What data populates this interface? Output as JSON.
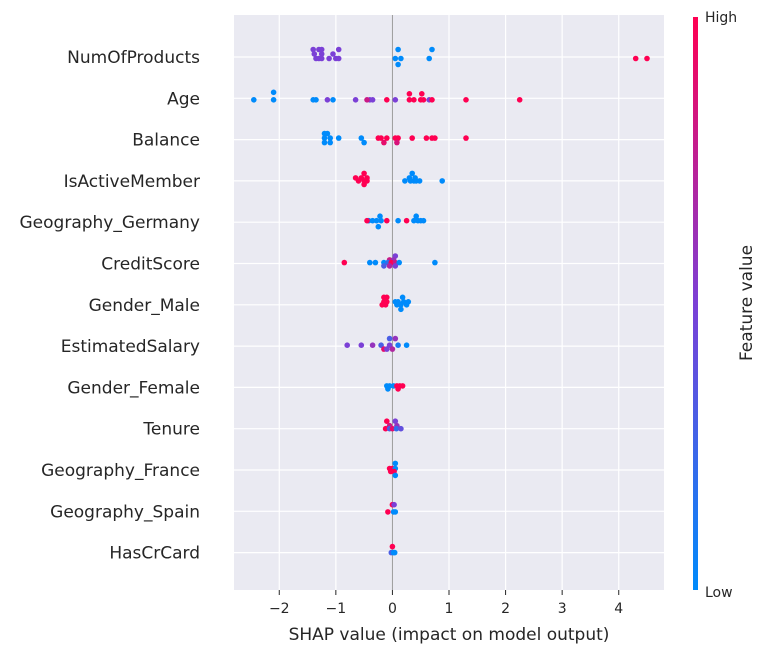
{
  "chart_data": {
    "type": "scatter",
    "subtype": "shap-beeswarm",
    "xlabel": "SHAP value (impact on model output)",
    "xlim": [
      -2.8,
      4.8
    ],
    "xticks": [
      -2,
      -1,
      0,
      1,
      2,
      3,
      4
    ],
    "xtick_labels": [
      "−2",
      "−1",
      "0",
      "1",
      "2",
      "3",
      "4"
    ],
    "grid": true,
    "colorbar": {
      "title": "Feature value",
      "high_label": "High",
      "low_label": "Low",
      "low_color": "#008bfb",
      "high_color": "#ff0052"
    },
    "features": [
      {
        "name": "NumOfProducts",
        "points": [
          {
            "x": -1.4,
            "dy": -0.25,
            "v": 0.5
          },
          {
            "x": -1.3,
            "dy": -0.25,
            "v": 0.5
          },
          {
            "x": -1.25,
            "dy": -0.25,
            "v": 0.5
          },
          {
            "x": -0.95,
            "dy": -0.25,
            "v": 0.5
          },
          {
            "x": -1.38,
            "dy": -0.1,
            "v": 0.5
          },
          {
            "x": -1.25,
            "dy": -0.1,
            "v": 0.5
          },
          {
            "x": -1.05,
            "dy": -0.1,
            "v": 0.5
          },
          {
            "x": -1.35,
            "dy": 0.05,
            "v": 0.5
          },
          {
            "x": -1.3,
            "dy": 0.05,
            "v": 0.5
          },
          {
            "x": -1.25,
            "dy": 0.05,
            "v": 0.5
          },
          {
            "x": -1.12,
            "dy": 0.05,
            "v": 0.5
          },
          {
            "x": -1.0,
            "dy": 0.05,
            "v": 0.5
          },
          {
            "x": -0.95,
            "dy": 0.05,
            "v": 0.5
          },
          {
            "x": 0.1,
            "dy": -0.25,
            "v": 0.0
          },
          {
            "x": 0.7,
            "dy": -0.25,
            "v": 0.0
          },
          {
            "x": 0.05,
            "dy": 0.05,
            "v": 0.0
          },
          {
            "x": 0.15,
            "dy": 0.05,
            "v": 0.0
          },
          {
            "x": 0.65,
            "dy": 0.05,
            "v": 0.0
          },
          {
            "x": 0.1,
            "dy": 0.25,
            "v": 0.0
          },
          {
            "x": 4.3,
            "dy": 0.05,
            "v": 1.0
          },
          {
            "x": 4.5,
            "dy": 0.05,
            "v": 1.0
          }
        ]
      },
      {
        "name": "Age",
        "points": [
          {
            "x": -2.1,
            "dy": -0.2,
            "v": 0.0
          },
          {
            "x": -2.45,
            "dy": 0.05,
            "v": 0.0
          },
          {
            "x": -2.1,
            "dy": 0.05,
            "v": 0.0
          },
          {
            "x": -1.4,
            "dy": 0.05,
            "v": 0.0
          },
          {
            "x": -1.35,
            "dy": 0.05,
            "v": 0.0
          },
          {
            "x": -1.05,
            "dy": 0.05,
            "v": 0.0
          },
          {
            "x": -1.15,
            "dy": 0.05,
            "v": 0.5
          },
          {
            "x": -0.65,
            "dy": 0.05,
            "v": 0.5
          },
          {
            "x": -0.4,
            "dy": 0.05,
            "v": 0.5
          },
          {
            "x": -0.35,
            "dy": 0.05,
            "v": 0.5
          },
          {
            "x": 0.05,
            "dy": 0.05,
            "v": 0.5
          },
          {
            "x": 0.65,
            "dy": 0.05,
            "v": 0.5
          },
          {
            "x": -0.45,
            "dy": 0.05,
            "v": 0.8
          },
          {
            "x": -0.1,
            "dy": 0.05,
            "v": 1.0
          },
          {
            "x": 0.3,
            "dy": 0.05,
            "v": 1.0
          },
          {
            "x": 0.38,
            "dy": 0.05,
            "v": 1.0
          },
          {
            "x": 0.5,
            "dy": 0.05,
            "v": 1.0
          },
          {
            "x": 0.55,
            "dy": 0.05,
            "v": 1.0
          },
          {
            "x": 0.7,
            "dy": 0.05,
            "v": 1.0
          },
          {
            "x": 1.3,
            "dy": 0.05,
            "v": 1.0
          },
          {
            "x": 2.25,
            "dy": 0.05,
            "v": 1.0
          },
          {
            "x": 0.3,
            "dy": -0.15,
            "v": 1.0
          },
          {
            "x": 0.52,
            "dy": -0.15,
            "v": 1.0
          }
        ]
      },
      {
        "name": "Balance",
        "points": [
          {
            "x": -1.2,
            "dy": -0.2,
            "v": 0.0
          },
          {
            "x": -1.15,
            "dy": -0.2,
            "v": 0.0
          },
          {
            "x": -1.2,
            "dy": -0.05,
            "v": 0.0
          },
          {
            "x": -1.1,
            "dy": -0.05,
            "v": 0.0
          },
          {
            "x": -0.95,
            "dy": -0.05,
            "v": 0.0
          },
          {
            "x": -0.55,
            "dy": -0.05,
            "v": 0.0
          },
          {
            "x": -1.2,
            "dy": 0.1,
            "v": 0.0
          },
          {
            "x": -1.1,
            "dy": 0.1,
            "v": 0.0
          },
          {
            "x": -0.5,
            "dy": 0.1,
            "v": 0.0
          },
          {
            "x": -0.25,
            "dy": -0.05,
            "v": 1.0
          },
          {
            "x": -0.2,
            "dy": -0.05,
            "v": 1.0
          },
          {
            "x": -0.1,
            "dy": -0.05,
            "v": 1.0
          },
          {
            "x": 0.05,
            "dy": -0.05,
            "v": 1.0
          },
          {
            "x": 0.1,
            "dy": -0.05,
            "v": 1.0
          },
          {
            "x": 0.35,
            "dy": -0.05,
            "v": 1.0
          },
          {
            "x": 0.6,
            "dy": -0.05,
            "v": 1.0
          },
          {
            "x": 0.7,
            "dy": -0.05,
            "v": 1.0
          },
          {
            "x": 0.75,
            "dy": -0.05,
            "v": 1.0
          },
          {
            "x": 1.3,
            "dy": -0.05,
            "v": 1.0
          },
          {
            "x": -0.15,
            "dy": 0.1,
            "v": 0.9
          },
          {
            "x": 0.08,
            "dy": 0.1,
            "v": 0.85
          }
        ]
      },
      {
        "name": "IsActiveMember",
        "points": [
          {
            "x": -0.5,
            "dy": -0.25,
            "v": 1.0
          },
          {
            "x": -0.65,
            "dy": -0.1,
            "v": 1.0
          },
          {
            "x": -0.55,
            "dy": -0.1,
            "v": 1.0
          },
          {
            "x": -0.45,
            "dy": -0.1,
            "v": 1.0
          },
          {
            "x": -0.6,
            "dy": 0.0,
            "v": 1.0
          },
          {
            "x": -0.5,
            "dy": 0.0,
            "v": 1.0
          },
          {
            "x": -0.45,
            "dy": 0.0,
            "v": 1.0
          },
          {
            "x": -0.5,
            "dy": 0.12,
            "v": 1.0
          },
          {
            "x": 0.35,
            "dy": -0.25,
            "v": 0.0
          },
          {
            "x": 0.3,
            "dy": -0.1,
            "v": 0.0
          },
          {
            "x": 0.4,
            "dy": -0.1,
            "v": 0.0
          },
          {
            "x": 0.22,
            "dy": 0.0,
            "v": 0.0
          },
          {
            "x": 0.32,
            "dy": 0.0,
            "v": 0.0
          },
          {
            "x": 0.38,
            "dy": 0.0,
            "v": 0.0
          },
          {
            "x": 0.42,
            "dy": 0.0,
            "v": 0.0
          },
          {
            "x": 0.48,
            "dy": 0.0,
            "v": 0.0
          },
          {
            "x": 0.88,
            "dy": 0.0,
            "v": 0.0
          }
        ]
      },
      {
        "name": "Geography_Germany",
        "points": [
          {
            "x": -0.22,
            "dy": -0.2,
            "v": 0.0
          },
          {
            "x": 0.42,
            "dy": -0.2,
            "v": 0.0
          },
          {
            "x": -0.42,
            "dy": -0.05,
            "v": 0.0
          },
          {
            "x": -0.35,
            "dy": -0.05,
            "v": 0.0
          },
          {
            "x": -0.28,
            "dy": -0.05,
            "v": 0.0
          },
          {
            "x": -0.2,
            "dy": -0.05,
            "v": 0.0
          },
          {
            "x": 0.1,
            "dy": -0.05,
            "v": 0.0
          },
          {
            "x": 0.38,
            "dy": -0.05,
            "v": 0.0
          },
          {
            "x": 0.45,
            "dy": -0.05,
            "v": 0.0
          },
          {
            "x": 0.5,
            "dy": -0.05,
            "v": 0.0
          },
          {
            "x": 0.55,
            "dy": -0.05,
            "v": 0.0
          },
          {
            "x": -0.25,
            "dy": 0.15,
            "v": 0.0
          },
          {
            "x": -0.45,
            "dy": -0.05,
            "v": 1.0
          },
          {
            "x": -0.1,
            "dy": -0.05,
            "v": 1.0
          },
          {
            "x": 0.25,
            "dy": -0.05,
            "v": 1.0
          }
        ]
      },
      {
        "name": "CreditScore",
        "points": [
          {
            "x": 0.05,
            "dy": -0.25,
            "v": 0.5
          },
          {
            "x": -0.05,
            "dy": -0.12,
            "v": 0.8
          },
          {
            "x": 0.02,
            "dy": -0.12,
            "v": 0.6
          },
          {
            "x": -0.85,
            "dy": -0.03,
            "v": 1.0
          },
          {
            "x": -0.4,
            "dy": -0.03,
            "v": 0.0
          },
          {
            "x": -0.3,
            "dy": -0.03,
            "v": 0.0
          },
          {
            "x": -0.15,
            "dy": -0.03,
            "v": 0.0
          },
          {
            "x": -0.08,
            "dy": -0.03,
            "v": 0.2
          },
          {
            "x": -0.02,
            "dy": -0.03,
            "v": 1.0
          },
          {
            "x": 0.05,
            "dy": -0.03,
            "v": 0.8
          },
          {
            "x": 0.12,
            "dy": -0.03,
            "v": 0.0
          },
          {
            "x": 0.75,
            "dy": -0.03,
            "v": 0.0
          },
          {
            "x": -0.15,
            "dy": 0.08,
            "v": 0.3
          },
          {
            "x": -0.05,
            "dy": 0.08,
            "v": 0.7
          },
          {
            "x": 0.05,
            "dy": 0.08,
            "v": 0.5
          }
        ]
      },
      {
        "name": "Gender_Male",
        "points": [
          {
            "x": -0.15,
            "dy": -0.25,
            "v": 1.0
          },
          {
            "x": -0.1,
            "dy": -0.25,
            "v": 1.0
          },
          {
            "x": 0.18,
            "dy": -0.25,
            "v": 0.0
          },
          {
            "x": -0.15,
            "dy": -0.1,
            "v": 1.0
          },
          {
            "x": -0.1,
            "dy": -0.1,
            "v": 1.0
          },
          {
            "x": 0.05,
            "dy": -0.1,
            "v": 0.0
          },
          {
            "x": 0.1,
            "dy": -0.1,
            "v": 0.0
          },
          {
            "x": 0.2,
            "dy": -0.1,
            "v": 0.0
          },
          {
            "x": 0.28,
            "dy": -0.1,
            "v": 0.0
          },
          {
            "x": -0.18,
            "dy": 0.0,
            "v": 1.0
          },
          {
            "x": -0.12,
            "dy": 0.0,
            "v": 1.0
          },
          {
            "x": 0.08,
            "dy": 0.0,
            "v": 0.0
          },
          {
            "x": 0.15,
            "dy": 0.0,
            "v": 0.0
          },
          {
            "x": 0.25,
            "dy": 0.0,
            "v": 0.0
          },
          {
            "x": 0.15,
            "dy": 0.15,
            "v": 0.0
          }
        ]
      },
      {
        "name": "EstimatedSalary",
        "points": [
          {
            "x": -0.05,
            "dy": -0.25,
            "v": 0.3
          },
          {
            "x": 0.05,
            "dy": -0.25,
            "v": 0.6
          },
          {
            "x": -0.8,
            "dy": -0.03,
            "v": 0.5
          },
          {
            "x": -0.55,
            "dy": -0.03,
            "v": 0.5
          },
          {
            "x": -0.35,
            "dy": -0.03,
            "v": 0.6
          },
          {
            "x": -0.2,
            "dy": -0.03,
            "v": 0.3
          },
          {
            "x": -0.05,
            "dy": -0.03,
            "v": 0.5
          },
          {
            "x": 0.1,
            "dy": -0.03,
            "v": 0.1
          },
          {
            "x": 0.25,
            "dy": -0.03,
            "v": 0.0
          },
          {
            "x": -0.15,
            "dy": 0.1,
            "v": 0.9
          },
          {
            "x": 0.0,
            "dy": 0.1,
            "v": 0.7
          },
          {
            "x": -0.1,
            "dy": 0.1,
            "v": 0.5
          }
        ]
      },
      {
        "name": "Gender_Female",
        "points": [
          {
            "x": -0.1,
            "dy": -0.05,
            "v": 0.0
          },
          {
            "x": -0.05,
            "dy": -0.05,
            "v": 0.0
          },
          {
            "x": 0.02,
            "dy": -0.05,
            "v": 0.0
          },
          {
            "x": 0.08,
            "dy": -0.05,
            "v": 1.0
          },
          {
            "x": 0.13,
            "dy": -0.05,
            "v": 1.0
          },
          {
            "x": 0.18,
            "dy": -0.05,
            "v": 1.0
          },
          {
            "x": -0.08,
            "dy": 0.05,
            "v": 0.0
          },
          {
            "x": 0.1,
            "dy": 0.05,
            "v": 1.0
          }
        ]
      },
      {
        "name": "Tenure",
        "points": [
          {
            "x": -0.1,
            "dy": -0.25,
            "v": 1.0
          },
          {
            "x": 0.05,
            "dy": -0.25,
            "v": 0.5
          },
          {
            "x": -0.05,
            "dy": -0.1,
            "v": 0.8
          },
          {
            "x": 0.08,
            "dy": -0.1,
            "v": 0.6
          },
          {
            "x": -0.12,
            "dy": 0.0,
            "v": 1.0
          },
          {
            "x": -0.05,
            "dy": 0.0,
            "v": 0.3
          },
          {
            "x": 0.0,
            "dy": 0.0,
            "v": 0.9
          },
          {
            "x": 0.07,
            "dy": 0.0,
            "v": 0.2
          },
          {
            "x": 0.15,
            "dy": 0.0,
            "v": 0.4
          }
        ]
      },
      {
        "name": "Geography_France",
        "points": [
          {
            "x": 0.05,
            "dy": -0.22,
            "v": 0.0
          },
          {
            "x": -0.05,
            "dy": -0.05,
            "v": 1.0
          },
          {
            "x": 0.0,
            "dy": -0.05,
            "v": 1.0
          },
          {
            "x": 0.05,
            "dy": -0.05,
            "v": 0.0
          },
          {
            "x": -0.03,
            "dy": 0.05,
            "v": 1.0
          },
          {
            "x": 0.03,
            "dy": 0.05,
            "v": 1.0
          },
          {
            "x": 0.05,
            "dy": 0.18,
            "v": 0.0
          }
        ]
      },
      {
        "name": "Geography_Spain",
        "points": [
          {
            "x": 0.0,
            "dy": -0.22,
            "v": 1.0
          },
          {
            "x": 0.03,
            "dy": -0.22,
            "v": 0.5
          },
          {
            "x": -0.08,
            "dy": 0.02,
            "v": 1.0
          },
          {
            "x": 0.02,
            "dy": 0.02,
            "v": 0.0
          },
          {
            "x": 0.05,
            "dy": 0.02,
            "v": 0.0
          }
        ]
      },
      {
        "name": "HasCrCard",
        "points": [
          {
            "x": 0.0,
            "dy": -0.2,
            "v": 1.0
          },
          {
            "x": -0.02,
            "dy": 0.0,
            "v": 0.3
          },
          {
            "x": 0.02,
            "dy": 0.0,
            "v": 0.0
          },
          {
            "x": 0.04,
            "dy": 0.0,
            "v": 0.0
          }
        ]
      }
    ]
  }
}
